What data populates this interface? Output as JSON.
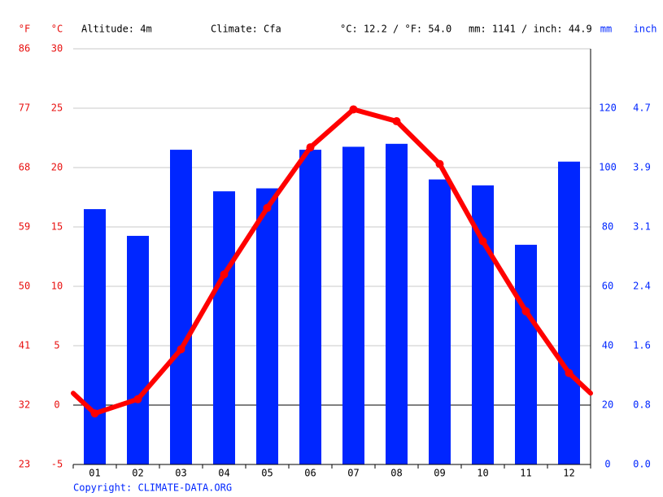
{
  "chart_data": {
    "type": "combo",
    "annotations": [
      "Altitude: 4m",
      "Climate: Cfa",
      "°C: 12.2 / °F: 54.0",
      "mm: 1141 / inch: 44.9"
    ],
    "y_label": "°C",
    "y_label_alt": "°F",
    "y2_label": "mm",
    "y2_label_alt": "inch",
    "categories": [
      "01",
      "02",
      "03",
      "04",
      "05",
      "06",
      "07",
      "08",
      "09",
      "10",
      "11",
      "12"
    ],
    "series": [
      {
        "type": "bar",
        "axis": "y2",
        "color": "#0026ff",
        "values": [
          86,
          77,
          106,
          92,
          93,
          106,
          107,
          108,
          96,
          94,
          74,
          102
        ]
      },
      {
        "type": "line",
        "color": "#ff0000",
        "values": [
          -0.7,
          0.5,
          4.7,
          11.0,
          16.6,
          21.7,
          24.9,
          23.9,
          20.3,
          13.8,
          7.9,
          2.7
        ]
      }
    ],
    "ylim": [
      -5,
      30
    ],
    "yticks": [
      -5,
      0,
      5,
      10,
      15,
      20,
      25,
      30
    ],
    "yticks_alt": [
      {
        "value": -5,
        "label": "23"
      },
      {
        "value": 0,
        "label": "32"
      },
      {
        "value": 5,
        "label": "41"
      },
      {
        "value": 10,
        "label": "50"
      },
      {
        "value": 15,
        "label": "59"
      },
      {
        "value": 20,
        "label": "68"
      },
      {
        "value": 25,
        "label": "77"
      },
      {
        "value": 30,
        "label": "86"
      }
    ],
    "y2lim": [
      0,
      140
    ],
    "y2ticks": [
      0,
      20,
      40,
      60,
      80,
      100,
      120
    ],
    "y2ticks_alt": [
      {
        "value": 0,
        "label": "0.0"
      },
      {
        "value": 20,
        "label": "0.8"
      },
      {
        "value": 40,
        "label": "1.6"
      },
      {
        "value": 60,
        "label": "2.4"
      },
      {
        "value": 80,
        "label": "3.1"
      },
      {
        "value": 100,
        "label": "3.9"
      },
      {
        "value": 120,
        "label": "4.7"
      }
    ],
    "grid": true,
    "source": "Copyright: CLIMATE-DATA.ORG"
  }
}
